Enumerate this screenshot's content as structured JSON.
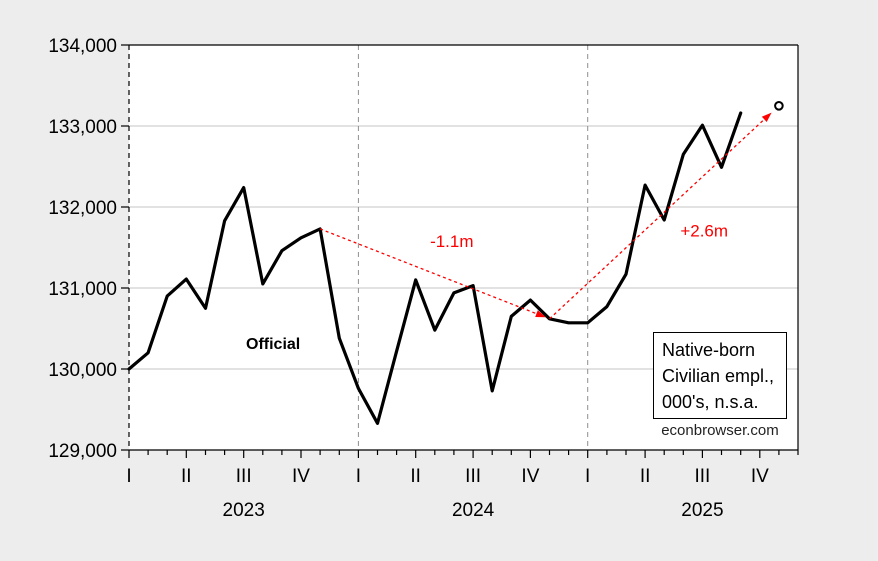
{
  "colors": {
    "background": "#ededed",
    "plot_background": "#ffffff",
    "grid": "#c6c6c6",
    "frame": "#000000",
    "year_divider": "#8f8f8f",
    "series_line": "#000000",
    "annotation_red": "#ff0000",
    "watermark_text": "#222222"
  },
  "chart_data": {
    "type": "line",
    "title": "",
    "xlabel": "",
    "ylabel": "",
    "ylim": [
      129000,
      134000
    ],
    "grid": "horizontal",
    "frequency": "monthly",
    "start_period": "2023 Q1 (January)",
    "y_ticks": [
      {
        "value": 129000,
        "label": "129,000"
      },
      {
        "value": 130000,
        "label": "130,000"
      },
      {
        "value": 131000,
        "label": "131,000"
      },
      {
        "value": 132000,
        "label": "132,000"
      },
      {
        "value": 133000,
        "label": "133,000"
      },
      {
        "value": 134000,
        "label": "134,000"
      }
    ],
    "x_axis": {
      "quarter_labels": [
        "I",
        "II",
        "III",
        "IV"
      ],
      "years": [
        "2023",
        "2024",
        "2025"
      ],
      "months_per_year": 12
    },
    "series": [
      {
        "name": "Official",
        "color": "#000000",
        "values": [
          130000,
          130200,
          130900,
          131110,
          130750,
          131830,
          132240,
          131050,
          131460,
          131620,
          131730,
          130380,
          129760,
          129330,
          130220,
          131100,
          130480,
          130940,
          131030,
          129730,
          130650,
          130850,
          130620,
          130570,
          130570,
          130770,
          131170,
          132270,
          131840,
          132650,
          133010,
          132490,
          133160
        ]
      }
    ],
    "forecast_point": {
      "month_index": 34,
      "period": "2025 November",
      "value": 133250,
      "marker": "open-circle"
    },
    "arrows": [
      {
        "label": "-1.1m",
        "from": {
          "month_index": 10,
          "value": 131730
        },
        "to": {
          "month_index": 22,
          "value": 130620
        },
        "color": "#ff0000"
      },
      {
        "label": "+2.6m",
        "from": {
          "month_index": 22,
          "value": 130620
        },
        "to": {
          "month_index": 34,
          "value": 133250
        },
        "color": "#ff0000"
      }
    ],
    "series_label": "Official",
    "legend": {
      "lines": [
        "Native-born",
        "Civilian empl.,",
        "000's, n.s.a."
      ]
    },
    "watermark": "econbrowser.com",
    "legend_position": "inside bottom-right"
  }
}
